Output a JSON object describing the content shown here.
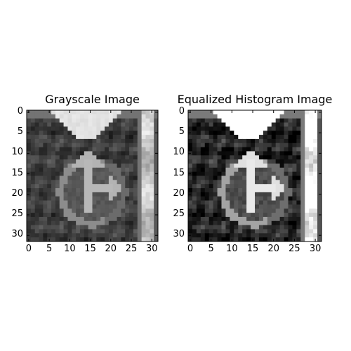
{
  "chart_data": [
    {
      "type": "heatmap",
      "title": "Grayscale Image",
      "colormap": "gray",
      "xlabel": "",
      "ylabel": "",
      "xlim": [
        0,
        31
      ],
      "ylim": [
        31,
        0
      ],
      "x_ticks": [
        "0",
        "5",
        "10",
        "15",
        "20",
        "25",
        "30"
      ],
      "y_ticks": [
        "0",
        "5",
        "10",
        "15",
        "20",
        "25",
        "30"
      ],
      "grid": false
    },
    {
      "type": "heatmap",
      "title": "Equalized Histogram Image",
      "colormap": "gray",
      "xlabel": "",
      "ylabel": "",
      "xlim": [
        0,
        31
      ],
      "ylim": [
        31,
        0
      ],
      "x_ticks": [
        "0",
        "5",
        "10",
        "15",
        "20",
        "25",
        "30"
      ],
      "y_ticks": [
        "0",
        "5",
        "10",
        "15",
        "20",
        "25",
        "30"
      ],
      "grid": false
    }
  ]
}
